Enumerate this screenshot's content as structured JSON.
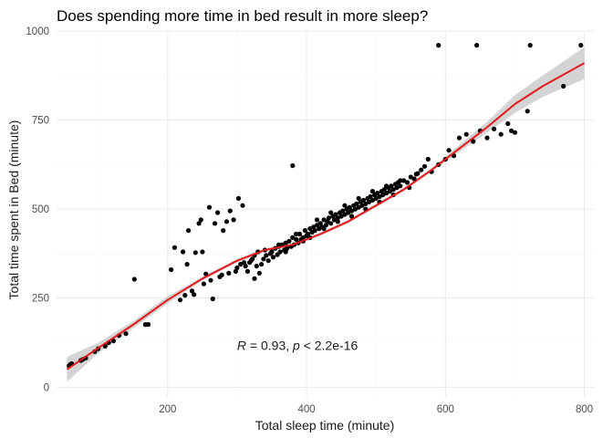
{
  "chart_data": {
    "type": "scatter",
    "title": "Does spending more time in bed result in more sleep?",
    "xlabel": "Total sleep time (minute)",
    "ylabel": "Total time spent in Bed (minute)",
    "xlim": [
      40,
      815
    ],
    "ylim": [
      -30,
      1000
    ],
    "xticks": [
      200,
      400,
      600,
      800
    ],
    "yticks": [
      0,
      250,
      500,
      750,
      1000
    ],
    "grid": true,
    "annotation": {
      "parts": [
        {
          "text": "R",
          "italic": true
        },
        {
          "text": " = 0.93, ",
          "italic": false
        },
        {
          "text": "p",
          "italic": true
        },
        {
          "text": " < 2.2e-16",
          "italic": false
        }
      ],
      "x": 300,
      "y": 100
    },
    "colors": {
      "points": "#000000",
      "trend": "#e41a1c",
      "band": "#bdbdbd"
    },
    "points": [
      [
        58,
        60
      ],
      [
        60,
        64
      ],
      [
        62,
        66
      ],
      [
        75,
        75
      ],
      [
        78,
        78
      ],
      [
        82,
        82
      ],
      [
        95,
        100
      ],
      [
        100,
        108
      ],
      [
        110,
        115
      ],
      [
        115,
        125
      ],
      [
        122,
        130
      ],
      [
        130,
        145
      ],
      [
        140,
        150
      ],
      [
        152,
        303
      ],
      [
        168,
        176
      ],
      [
        172,
        176
      ],
      [
        205,
        330
      ],
      [
        210,
        392
      ],
      [
        218,
        245
      ],
      [
        222,
        380
      ],
      [
        225,
        258
      ],
      [
        228,
        345
      ],
      [
        230,
        440
      ],
      [
        235,
        270
      ],
      [
        238,
        260
      ],
      [
        240,
        378
      ],
      [
        245,
        460
      ],
      [
        248,
        470
      ],
      [
        250,
        380
      ],
      [
        252,
        290
      ],
      [
        255,
        318
      ],
      [
        260,
        505
      ],
      [
        262,
        300
      ],
      [
        265,
        248
      ],
      [
        268,
        460
      ],
      [
        272,
        490
      ],
      [
        275,
        310
      ],
      [
        278,
        315
      ],
      [
        280,
        440
      ],
      [
        285,
        465
      ],
      [
        288,
        320
      ],
      [
        290,
        495
      ],
      [
        295,
        470
      ],
      [
        298,
        325
      ],
      [
        300,
        335
      ],
      [
        302,
        530
      ],
      [
        305,
        345
      ],
      [
        308,
        510
      ],
      [
        310,
        350
      ],
      [
        312,
        340
      ],
      [
        315,
        325
      ],
      [
        318,
        350
      ],
      [
        320,
        355
      ],
      [
        322,
        360
      ],
      [
        325,
        370
      ],
      [
        325,
        305
      ],
      [
        328,
        340
      ],
      [
        330,
        380
      ],
      [
        332,
        320
      ],
      [
        335,
        345
      ],
      [
        338,
        360
      ],
      [
        340,
        385
      ],
      [
        342,
        370
      ],
      [
        345,
        355
      ],
      [
        348,
        375
      ],
      [
        350,
        380
      ],
      [
        352,
        365
      ],
      [
        355,
        390
      ],
      [
        358,
        372
      ],
      [
        360,
        395
      ],
      [
        362,
        380
      ],
      [
        365,
        400
      ],
      [
        368,
        385
      ],
      [
        370,
        405
      ],
      [
        372,
        390
      ],
      [
        375,
        410
      ],
      [
        378,
        395
      ],
      [
        380,
        420
      ],
      [
        380,
        622
      ],
      [
        382,
        400
      ],
      [
        385,
        415
      ],
      [
        388,
        405
      ],
      [
        390,
        430
      ],
      [
        392,
        415
      ],
      [
        395,
        420
      ],
      [
        398,
        440
      ],
      [
        400,
        425
      ],
      [
        402,
        430
      ],
      [
        405,
        445
      ],
      [
        408,
        435
      ],
      [
        410,
        450
      ],
      [
        412,
        440
      ],
      [
        415,
        455
      ],
      [
        418,
        445
      ],
      [
        420,
        460
      ],
      [
        422,
        450
      ],
      [
        425,
        470
      ],
      [
        428,
        455
      ],
      [
        430,
        465
      ],
      [
        432,
        475
      ],
      [
        435,
        460
      ],
      [
        438,
        480
      ],
      [
        440,
        470
      ],
      [
        442,
        485
      ],
      [
        445,
        475
      ],
      [
        448,
        490
      ],
      [
        450,
        480
      ],
      [
        452,
        495
      ],
      [
        455,
        485
      ],
      [
        458,
        500
      ],
      [
        460,
        490
      ],
      [
        462,
        505
      ],
      [
        465,
        495
      ],
      [
        468,
        510
      ],
      [
        470,
        500
      ],
      [
        472,
        515
      ],
      [
        475,
        505
      ],
      [
        478,
        520
      ],
      [
        480,
        510
      ],
      [
        482,
        525
      ],
      [
        485,
        515
      ],
      [
        488,
        530
      ],
      [
        490,
        520
      ],
      [
        492,
        535
      ],
      [
        495,
        525
      ],
      [
        498,
        540
      ],
      [
        500,
        530
      ],
      [
        502,
        545
      ],
      [
        505,
        535
      ],
      [
        508,
        550
      ],
      [
        510,
        540
      ],
      [
        512,
        555
      ],
      [
        515,
        545
      ],
      [
        518,
        560
      ],
      [
        520,
        550
      ],
      [
        522,
        565
      ],
      [
        525,
        555
      ],
      [
        528,
        570
      ],
      [
        530,
        560
      ],
      [
        532,
        575
      ],
      [
        535,
        565
      ],
      [
        540,
        580
      ],
      [
        545,
        575
      ],
      [
        550,
        590
      ],
      [
        555,
        585
      ],
      [
        560,
        600
      ],
      [
        565,
        610
      ],
      [
        570,
        620
      ],
      [
        575,
        640
      ],
      [
        580,
        605
      ],
      [
        590,
        625
      ],
      [
        600,
        640
      ],
      [
        605,
        665
      ],
      [
        612,
        650
      ],
      [
        620,
        700
      ],
      [
        630,
        710
      ],
      [
        640,
        690
      ],
      [
        650,
        720
      ],
      [
        660,
        700
      ],
      [
        670,
        725
      ],
      [
        680,
        710
      ],
      [
        690,
        740
      ],
      [
        695,
        720
      ],
      [
        700,
        715
      ],
      [
        718,
        775
      ],
      [
        770,
        845
      ],
      [
        590,
        960
      ],
      [
        645,
        960
      ],
      [
        722,
        960
      ],
      [
        795,
        960
      ],
      [
        360,
        400
      ],
      [
        370,
        380
      ],
      [
        385,
        430
      ],
      [
        395,
        410
      ],
      [
        405,
        420
      ],
      [
        415,
        470
      ],
      [
        425,
        445
      ],
      [
        435,
        490
      ],
      [
        445,
        465
      ],
      [
        455,
        510
      ],
      [
        465,
        480
      ],
      [
        475,
        530
      ],
      [
        485,
        500
      ],
      [
        495,
        550
      ],
      [
        505,
        520
      ],
      [
        515,
        565
      ],
      [
        525,
        540
      ],
      [
        535,
        580
      ],
      [
        548,
        560
      ],
      [
        558,
        598
      ]
    ],
    "trend": {
      "x": [
        55,
        100,
        150,
        200,
        250,
        300,
        340,
        380,
        420,
        460,
        500,
        540,
        580,
        620,
        660,
        700,
        740,
        800
      ],
      "y": [
        50,
        110,
        175,
        245,
        305,
        355,
        385,
        400,
        430,
        465,
        510,
        555,
        610,
        670,
        730,
        795,
        845,
        910
      ],
      "band_lo": [
        15,
        95,
        165,
        235,
        300,
        350,
        380,
        395,
        425,
        460,
        505,
        550,
        605,
        660,
        715,
        770,
        815,
        865
      ],
      "band_hi": [
        85,
        125,
        185,
        255,
        310,
        360,
        390,
        405,
        435,
        470,
        515,
        560,
        615,
        680,
        745,
        820,
        875,
        955
      ]
    }
  }
}
